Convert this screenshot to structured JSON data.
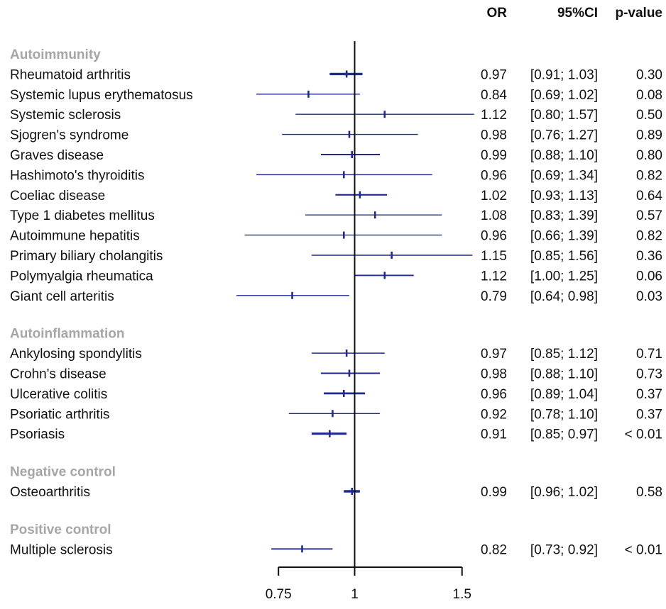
{
  "chart_data": {
    "type": "forest",
    "headers": {
      "or": "OR",
      "ci": "95%CI",
      "p": "p-value"
    },
    "x_axis": {
      "scale": "log",
      "ticks": [
        0.75,
        1,
        1.5
      ],
      "tick_labels": [
        "0.75",
        "1",
        "1.5"
      ],
      "reference_line": 1
    },
    "colors": {
      "series": "#1f2a8c",
      "axis": "#111111",
      "group_label": "#a6a6a6"
    },
    "groups": [
      {
        "name": "Autoimmunity",
        "rows": [
          {
            "label": "Rheumatoid arthritis",
            "or": 0.97,
            "lo": 0.91,
            "hi": 1.03,
            "or_text": "0.97",
            "ci_text": "[0.91; 1.03]",
            "p_text": "0.30"
          },
          {
            "label": "Systemic lupus erythematosus",
            "or": 0.84,
            "lo": 0.69,
            "hi": 1.02,
            "or_text": "0.84",
            "ci_text": "[0.69; 1.02]",
            "p_text": "0.08"
          },
          {
            "label": "Systemic sclerosis",
            "or": 1.12,
            "lo": 0.8,
            "hi": 1.57,
            "or_text": "1.12",
            "ci_text": "[0.80; 1.57]",
            "p_text": "0.50"
          },
          {
            "label": "Sjogren's syndrome",
            "or": 0.98,
            "lo": 0.76,
            "hi": 1.27,
            "or_text": "0.98",
            "ci_text": "[0.76; 1.27]",
            "p_text": "0.89"
          },
          {
            "label": "Graves disease",
            "or": 0.99,
            "lo": 0.88,
            "hi": 1.1,
            "or_text": "0.99",
            "ci_text": "[0.88; 1.10]",
            "p_text": "0.80"
          },
          {
            "label": "Hashimoto's thyroiditis",
            "or": 0.96,
            "lo": 0.69,
            "hi": 1.34,
            "or_text": "0.96",
            "ci_text": "[0.69; 1.34]",
            "p_text": "0.82"
          },
          {
            "label": "Coeliac disease",
            "or": 1.02,
            "lo": 0.93,
            "hi": 1.13,
            "or_text": "1.02",
            "ci_text": "[0.93; 1.13]",
            "p_text": "0.64"
          },
          {
            "label": "Type 1 diabetes mellitus",
            "or": 1.08,
            "lo": 0.83,
            "hi": 1.39,
            "or_text": "1.08",
            "ci_text": "[0.83; 1.39]",
            "p_text": "0.57"
          },
          {
            "label": "Autoimmune hepatitis",
            "or": 0.96,
            "lo": 0.66,
            "hi": 1.39,
            "or_text": "0.96",
            "ci_text": "[0.66; 1.39]",
            "p_text": "0.82"
          },
          {
            "label": "Primary biliary cholangitis",
            "or": 1.15,
            "lo": 0.85,
            "hi": 1.56,
            "or_text": "1.15",
            "ci_text": "[0.85; 1.56]",
            "p_text": "0.36"
          },
          {
            "label": "Polymyalgia rheumatica",
            "or": 1.12,
            "lo": 1.0,
            "hi": 1.25,
            "or_text": "1.12",
            "ci_text": "[1.00; 1.25]",
            "p_text": "0.06"
          },
          {
            "label": "Giant cell arteritis",
            "or": 0.79,
            "lo": 0.64,
            "hi": 0.98,
            "or_text": "0.79",
            "ci_text": "[0.64; 0.98]",
            "p_text": "0.03"
          }
        ]
      },
      {
        "name": "Autoinflammation",
        "rows": [
          {
            "label": "Ankylosing spondylitis",
            "or": 0.97,
            "lo": 0.85,
            "hi": 1.12,
            "or_text": "0.97",
            "ci_text": "[0.85; 1.12]",
            "p_text": "0.71"
          },
          {
            "label": "Crohn's disease",
            "or": 0.98,
            "lo": 0.88,
            "hi": 1.1,
            "or_text": "0.98",
            "ci_text": "[0.88; 1.10]",
            "p_text": "0.73"
          },
          {
            "label": "Ulcerative colitis",
            "or": 0.96,
            "lo": 0.89,
            "hi": 1.04,
            "or_text": "0.96",
            "ci_text": "[0.89; 1.04]",
            "p_text": "0.37"
          },
          {
            "label": "Psoriatic arthritis",
            "or": 0.92,
            "lo": 0.78,
            "hi": 1.1,
            "or_text": "0.92",
            "ci_text": "[0.78; 1.10]",
            "p_text": "0.37"
          },
          {
            "label": "Psoriasis",
            "or": 0.91,
            "lo": 0.85,
            "hi": 0.97,
            "or_text": "0.91",
            "ci_text": "[0.85; 0.97]",
            "p_text": "< 0.01"
          }
        ]
      },
      {
        "name": "Negative control",
        "rows": [
          {
            "label": "Osteoarthritis",
            "or": 0.99,
            "lo": 0.96,
            "hi": 1.02,
            "or_text": "0.99",
            "ci_text": "[0.96; 1.02]",
            "p_text": "0.58"
          }
        ]
      },
      {
        "name": "Positive control",
        "rows": [
          {
            "label": "Multiple sclerosis",
            "or": 0.82,
            "lo": 0.73,
            "hi": 0.92,
            "or_text": "0.82",
            "ci_text": "[0.73; 0.92]",
            "p_text": "< 0.01"
          }
        ]
      }
    ]
  }
}
